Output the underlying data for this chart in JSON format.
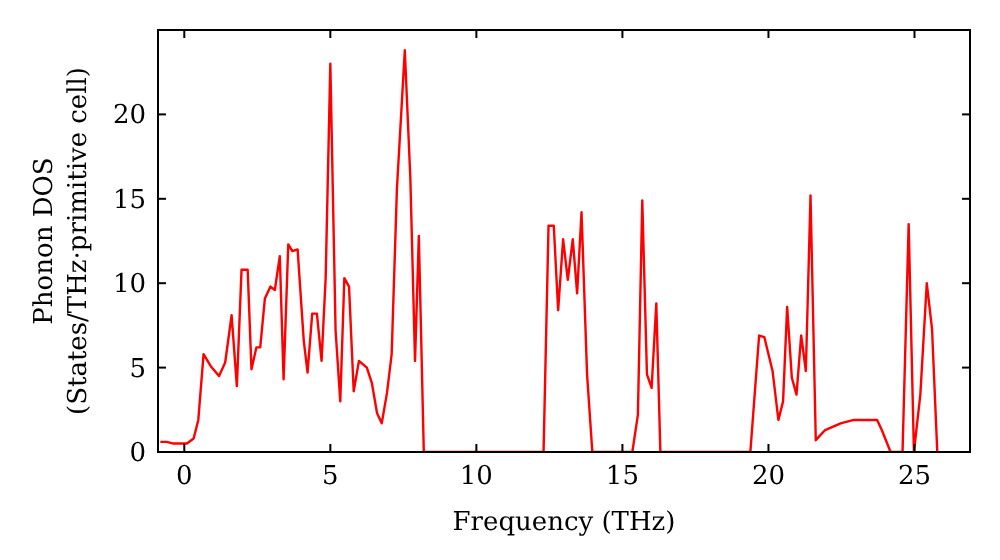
{
  "chart_data": {
    "type": "line",
    "xlabel": "Frequency (THz)",
    "ylabel": "Phonon DOS\n(States/THz·primitive cell)",
    "x": [
      -0.82,
      -0.6,
      -0.37,
      0.09,
      0.32,
      0.48,
      0.66,
      0.9,
      1.19,
      1.4,
      1.62,
      1.8,
      1.96,
      2.17,
      2.3,
      2.47,
      2.6,
      2.76,
      2.95,
      3.1,
      3.27,
      3.4,
      3.56,
      3.7,
      3.88,
      4.09,
      4.22,
      4.38,
      4.54,
      4.7,
      4.84,
      5.0,
      5.18,
      5.34,
      5.48,
      5.64,
      5.8,
      5.98,
      6.25,
      6.42,
      6.6,
      6.76,
      6.94,
      7.1,
      7.28,
      7.55,
      7.74,
      7.9,
      8.03,
      8.2,
      12.3,
      12.47,
      12.65,
      12.8,
      12.97,
      13.13,
      13.3,
      13.45,
      13.6,
      13.79,
      13.97,
      15.34,
      15.53,
      15.68,
      15.84,
      16.0,
      16.16,
      16.3,
      19.38,
      19.68,
      19.86,
      20.14,
      20.34,
      20.5,
      20.64,
      20.8,
      20.96,
      21.12,
      21.28,
      21.44,
      21.62,
      21.94,
      22.47,
      22.92,
      23.72,
      23.88,
      24.18,
      24.59,
      24.8,
      24.98,
      25.2,
      25.42,
      25.6,
      25.78
    ],
    "series": [
      {
        "color": "#ff0000",
        "values": [
          0.6,
          0.6,
          0.5,
          0.5,
          0.8,
          1.9,
          5.8,
          5.1,
          4.5,
          5.3,
          8.1,
          3.9,
          10.8,
          10.8,
          4.9,
          6.2,
          6.2,
          9.1,
          9.8,
          9.6,
          11.6,
          4.3,
          12.3,
          11.9,
          12.0,
          6.6,
          4.7,
          8.2,
          8.2,
          5.4,
          10.3,
          23.0,
          7.2,
          3.0,
          10.3,
          9.8,
          3.6,
          5.4,
          5.0,
          4.1,
          2.3,
          1.7,
          3.5,
          5.8,
          15.6,
          23.8,
          16.2,
          5.4,
          12.8,
          0,
          0,
          13.4,
          13.4,
          8.4,
          12.6,
          10.2,
          12.6,
          9.4,
          14.2,
          4.6,
          0,
          0,
          2.2,
          14.9,
          4.6,
          3.8,
          8.8,
          0,
          0,
          6.9,
          6.8,
          4.8,
          1.9,
          3.0,
          8.6,
          4.4,
          3.4,
          6.9,
          4.8,
          15.2,
          0.7,
          1.3,
          1.7,
          1.9,
          1.9,
          1.3,
          0,
          0,
          13.5,
          0,
          3.4,
          10.0,
          7.3,
          0
        ]
      }
    ],
    "xlim": [
      -0.9,
      26.9
    ],
    "xticks": [
      0,
      5,
      10,
      15,
      20,
      25
    ],
    "ylim": [
      0,
      25
    ],
    "yticks": [
      0,
      5,
      10,
      15,
      20
    ],
    "grid": false,
    "marker": "none",
    "line_style": "solid"
  }
}
